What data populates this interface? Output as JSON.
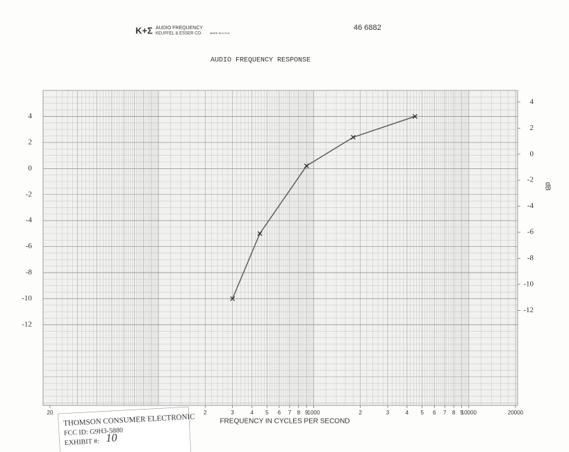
{
  "header": {
    "logo": "K+Σ",
    "brand": "AUDIO FREQUENCY",
    "maker": "KEUFFEL & ESSER CO.",
    "origin": "MADE IN U.S.A.",
    "number": "46 6882"
  },
  "chart_data": {
    "type": "line",
    "title": "AUDIO FREQUENCY RESPONSE",
    "x_label": "FREQUENCY IN CYCLES PER SECOND",
    "y2_label": "dB",
    "x_log": true,
    "x": [
      300,
      450,
      900,
      1800,
      4500
    ],
    "series": [
      {
        "color": "#555555",
        "values": [
          -10,
          -5,
          0.2,
          2.4,
          4.0
        ]
      }
    ],
    "xlim": [
      20,
      20000
    ],
    "xticks": [
      20,
      {
        "value": 200,
        "label": "2"
      },
      {
        "value": 300,
        "label": "3"
      },
      {
        "value": 400,
        "label": "4"
      },
      {
        "value": 500,
        "label": "5"
      },
      {
        "value": 600,
        "label": "6"
      },
      {
        "value": 700,
        "label": "7"
      },
      {
        "value": 800,
        "label": "8"
      },
      {
        "value": 900,
        "label": "9"
      },
      1000,
      {
        "value": 2000,
        "label": "2"
      },
      {
        "value": 3000,
        "label": "3"
      },
      {
        "value": 4000,
        "label": "4"
      },
      {
        "value": 5000,
        "label": "5"
      },
      {
        "value": 6000,
        "label": "6"
      },
      {
        "value": 7000,
        "label": "7"
      },
      {
        "value": 8000,
        "label": "8"
      },
      {
        "value": 9000,
        "label": "9"
      },
      10000,
      20000
    ],
    "ylim": [
      -18.2,
      6
    ],
    "yticks": [
      4,
      2,
      0,
      -2,
      -4,
      -6,
      -8,
      -10,
      -12
    ],
    "y2lim": [
      -19.3,
      4.9
    ],
    "y2ticks": [
      4,
      2,
      0,
      -2,
      -4,
      -6,
      -8,
      -10,
      -12
    ],
    "grid": true
  },
  "stamp": {
    "company": "THOMSON CONSUMER ELECTRONIC",
    "fcc": "FCC ID: G9H3-5880",
    "exhibit_label": "EXHIBIT #:",
    "exhibit_number": "10"
  }
}
